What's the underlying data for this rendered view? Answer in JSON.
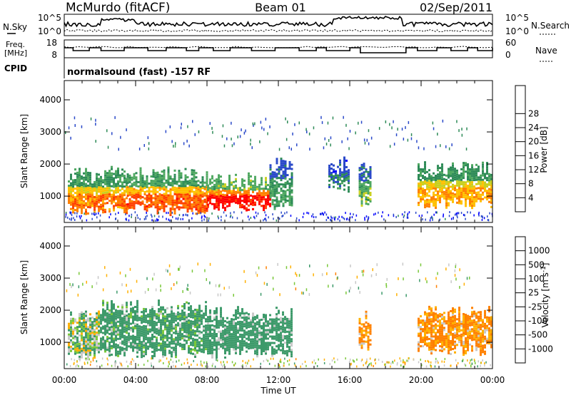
{
  "header": {
    "station": "McMurdo (fitACF)",
    "beam": "Beam 01",
    "date": "02/Sep/2011"
  },
  "noise_panel": {
    "left_label": "N.Sky",
    "right_label": "N.Search",
    "left_ticks": [
      "10^5",
      "10^0"
    ],
    "right_ticks": [
      "10^5",
      "10^0"
    ]
  },
  "freq_panel": {
    "left_label_1": "Freq.",
    "left_label_2": "[MHz]",
    "left_ticks": [
      "18",
      "8"
    ],
    "right_label": "Nave",
    "right_ticks": [
      "60",
      "0"
    ]
  },
  "cpid_panel": {
    "label": "CPID",
    "text": "normalsound (fast) -157 RF"
  },
  "axes": {
    "ylabel": "Slant Range [km]",
    "xlabel": "Time UT",
    "x_ticks": [
      "00:00",
      "04:00",
      "08:00",
      "12:00",
      "16:00",
      "20:00",
      "00:00"
    ],
    "y_ticks": [
      "1000",
      "2000",
      "3000",
      "4000"
    ]
  },
  "power_scale": {
    "title": "Power [dB]",
    "ticks": [
      "4",
      "8",
      "12",
      "16",
      "20",
      "24",
      "28"
    ],
    "colors": [
      "#0000ff",
      "#2a49c9",
      "#2e8b57",
      "#4fa860",
      "#c8d020",
      "#ffc000",
      "#ff8000",
      "#ff4000",
      "#ff0000"
    ]
  },
  "velocity_scale": {
    "title": "Velocity [m s-1]",
    "ticks": [
      "1000",
      "500",
      "100",
      "25",
      "-25",
      "-100",
      "-500",
      "-1000"
    ],
    "colors": [
      "#2a49c9",
      "#2e7060",
      "#3d9a6a",
      "#7ac83a",
      "#c8c8c8",
      "#ffb000",
      "#ff8000",
      "#ff5000",
      "#ff0000"
    ]
  },
  "chart_data": [
    {
      "type": "heatmap",
      "panel": "power",
      "colorbar_label": "Power [dB]",
      "xlabel": "Time UT",
      "ylabel": "Slant Range [km]",
      "xlim": [
        0,
        24
      ],
      "ylim": [
        180,
        4600
      ],
      "clim": [
        0,
        30
      ],
      "regions": [
        {
          "t0": 0.2,
          "t1": 3.5,
          "r0": 600,
          "r1": 1700,
          "value": 22
        },
        {
          "t0": 3.5,
          "t1": 8.0,
          "r0": 600,
          "r1": 1700,
          "value": 24
        },
        {
          "t0": 8.0,
          "t1": 11.5,
          "r0": 700,
          "r1": 1500,
          "value": 28
        },
        {
          "t0": 11.5,
          "t1": 12.8,
          "r0": 800,
          "r1": 2000,
          "value": 10
        },
        {
          "t0": 14.8,
          "t1": 16.0,
          "r0": 1300,
          "r1": 2000,
          "value": 8
        },
        {
          "t0": 16.5,
          "t1": 17.2,
          "r0": 900,
          "r1": 1800,
          "value": 12
        },
        {
          "t0": 19.8,
          "t1": 24.0,
          "r0": 800,
          "r1": 1900,
          "value": 20
        }
      ]
    },
    {
      "type": "heatmap",
      "panel": "velocity",
      "colorbar_label": "Velocity [m s-1]",
      "xlabel": "Time UT",
      "ylabel": "Slant Range [km]",
      "xlim": [
        0,
        24
      ],
      "ylim": [
        180,
        4600
      ],
      "clim": [
        -1000,
        1000
      ],
      "regions": [
        {
          "t0": 0.2,
          "t1": 2.0,
          "r0": 600,
          "r1": 1800,
          "value": 60
        },
        {
          "t0": 2.0,
          "t1": 8.0,
          "r0": 700,
          "r1": 2100,
          "value": 200
        },
        {
          "t0": 8.0,
          "t1": 12.8,
          "r0": 700,
          "r1": 1900,
          "value": 250
        },
        {
          "t0": 16.5,
          "t1": 17.2,
          "r0": 900,
          "r1": 1800,
          "value": -150
        },
        {
          "t0": 19.8,
          "t1": 24.0,
          "r0": 800,
          "r1": 1900,
          "value": -150
        }
      ]
    }
  ]
}
